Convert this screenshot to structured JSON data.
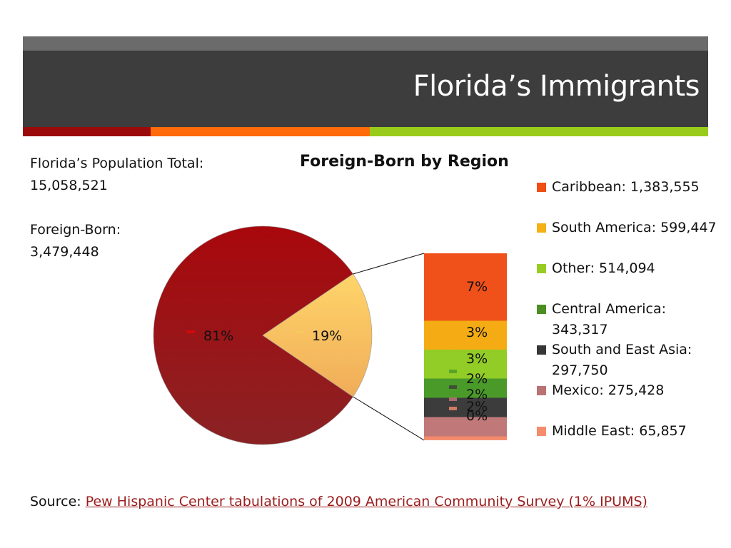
{
  "slide": {
    "title": "Florida’s Immigrants",
    "stripe_colors": [
      "#9b0a0a",
      "#ff6a0a",
      "#99cc1a"
    ]
  },
  "summary": {
    "population_label": "Florida’s Population Total:",
    "population_value": "15,058,521",
    "foreign_born_label": "Foreign-Born:",
    "foreign_born_value": "3,479,448"
  },
  "chart_data": {
    "type": "pie",
    "title": "Foreign-Born by Region",
    "pie": {
      "slices": [
        {
          "label": "81%",
          "value": 81,
          "color": "#a3151a"
        },
        {
          "label": "19%",
          "value": 19,
          "color": "#f6c25e"
        }
      ]
    },
    "breakdown": {
      "type": "stacked-bar",
      "segments": [
        {
          "label": "7%",
          "value": 7,
          "color": "#f0501a"
        },
        {
          "label": "3%",
          "value": 3,
          "color": "#f5ac14"
        },
        {
          "label": "3%",
          "value": 3,
          "color": "#92cc26"
        },
        {
          "label": "2%",
          "value": 2,
          "color": "#4a9a2a"
        },
        {
          "label": "2%",
          "value": 2,
          "color": "#3c3c3c"
        },
        {
          "label": "2%",
          "value": 2,
          "color": "#c07878"
        },
        {
          "label": "0%",
          "value": 0.4,
          "color": "#f48a6a"
        }
      ]
    },
    "legend": [
      {
        "label": "Caribbean: 1,383,555",
        "color": "#f04e12"
      },
      {
        "label": "South America: 599,447",
        "color": "#f5b016"
      },
      {
        "label": "Other: 514,094",
        "color": "#98cc22"
      },
      {
        "label": "Central America: 343,317",
        "color": "#4b8f22"
      },
      {
        "label": "South and East Asia: 297,750",
        "color": "#363636"
      },
      {
        "label": "Mexico: 275,428",
        "color": "#b97373"
      },
      {
        "label": "Middle East: 65,857",
        "color": "#f58c6c"
      }
    ]
  },
  "source": {
    "prefix": "Source: ",
    "link_text": "Pew Hispanic Center tabulations of 2009 American Community Survey (1% IPUMS)"
  }
}
